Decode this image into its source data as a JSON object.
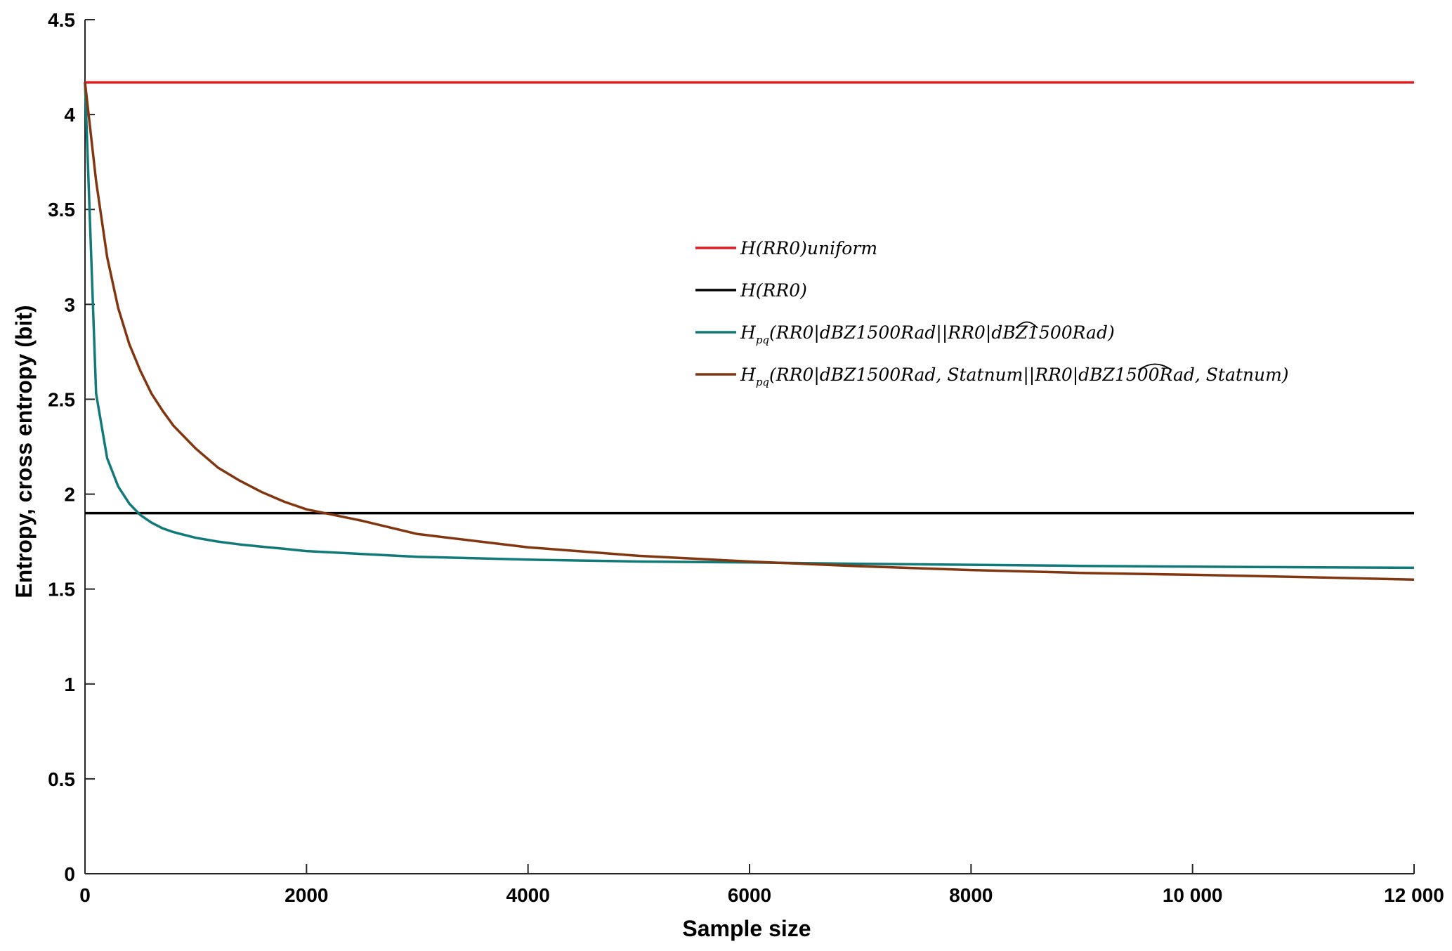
{
  "chart_data": {
    "type": "line",
    "xlabel": "Sample size",
    "ylabel": "Entropy, cross entropy (bit)",
    "xlim": [
      0,
      12000
    ],
    "ylim": [
      0,
      4.5
    ],
    "x_ticks": [
      0,
      2000,
      4000,
      6000,
      8000,
      10000,
      12000
    ],
    "x_tick_labels": [
      "0",
      "2000",
      "4000",
      "6000",
      "8000",
      "10 000",
      "12 000"
    ],
    "y_ticks": [
      0,
      0.5,
      1,
      1.5,
      2,
      2.5,
      3,
      3.5,
      4,
      4.5
    ],
    "y_tick_labels": [
      "0",
      "0.5",
      "1",
      "1.5",
      "2",
      "2.5",
      "3",
      "3.5",
      "4",
      "4.5"
    ],
    "grid": false,
    "legend_position": "center-right",
    "series": [
      {
        "name": "H(RR0)uniform",
        "color": "#e8191d",
        "x": [
          0,
          12000
        ],
        "y": [
          4.17,
          4.17
        ]
      },
      {
        "name": "H(RR0)",
        "color": "#000000",
        "x": [
          0,
          12000
        ],
        "y": [
          1.9,
          1.9
        ]
      },
      {
        "name": "Hpq(RR0|dBZ1500Rad||RR0|dBZ1500Rad)",
        "color": "#117a78",
        "x": [
          0,
          100,
          200,
          300,
          400,
          500,
          600,
          700,
          800,
          900,
          1000,
          1200,
          1400,
          1600,
          1800,
          2000,
          2500,
          3000,
          4000,
          5000,
          6000,
          7000,
          8000,
          9000,
          10000,
          11000,
          12000
        ],
        "y": [
          4.17,
          2.53,
          2.19,
          2.04,
          1.95,
          1.89,
          1.85,
          1.82,
          1.8,
          1.785,
          1.77,
          1.75,
          1.735,
          1.723,
          1.712,
          1.7,
          1.685,
          1.67,
          1.655,
          1.645,
          1.64,
          1.633,
          1.628,
          1.622,
          1.618,
          1.615,
          1.612
        ]
      },
      {
        "name": "Hpq(RR0|dBZ1500Rad, Statnum||RR0|dBZ1500Rad, Statnum)",
        "color": "#82360f",
        "x": [
          0,
          100,
          200,
          300,
          400,
          500,
          600,
          700,
          800,
          900,
          1000,
          1200,
          1400,
          1600,
          1800,
          2000,
          2500,
          3000,
          4000,
          5000,
          6000,
          7000,
          8000,
          9000,
          10000,
          11000,
          12000
        ],
        "y": [
          4.17,
          3.65,
          3.25,
          2.98,
          2.79,
          2.65,
          2.53,
          2.44,
          2.36,
          2.3,
          2.24,
          2.14,
          2.07,
          2.01,
          1.96,
          1.92,
          1.86,
          1.79,
          1.72,
          1.675,
          1.645,
          1.62,
          1.6,
          1.585,
          1.575,
          1.563,
          1.55
        ]
      }
    ],
    "legend": {
      "entries": [
        {
          "color": "#e8191d",
          "parts": [
            {
              "t": "H(RR0)uniform"
            }
          ]
        },
        {
          "color": "#000000",
          "parts": [
            {
              "t": "H(RR0)"
            }
          ]
        },
        {
          "color": "#117a78",
          "parts": [
            {
              "t": "H"
            },
            {
              "t": "pq",
              "sub": true
            },
            {
              "t": "(RR0|dBZ1500Rad||RR0|dB"
            },
            {
              "t": "Z1",
              "hat": true
            },
            {
              "t": "500Rad)"
            }
          ]
        },
        {
          "color": "#82360f",
          "parts": [
            {
              "t": "H"
            },
            {
              "t": "pq",
              "sub": true
            },
            {
              "t": "(RR0|dBZ1500Rad, Statnum||RR0|dBZ15"
            },
            {
              "t": "00R",
              "hat": true
            },
            {
              "t": "ad, Statnum)"
            }
          ]
        }
      ]
    }
  }
}
